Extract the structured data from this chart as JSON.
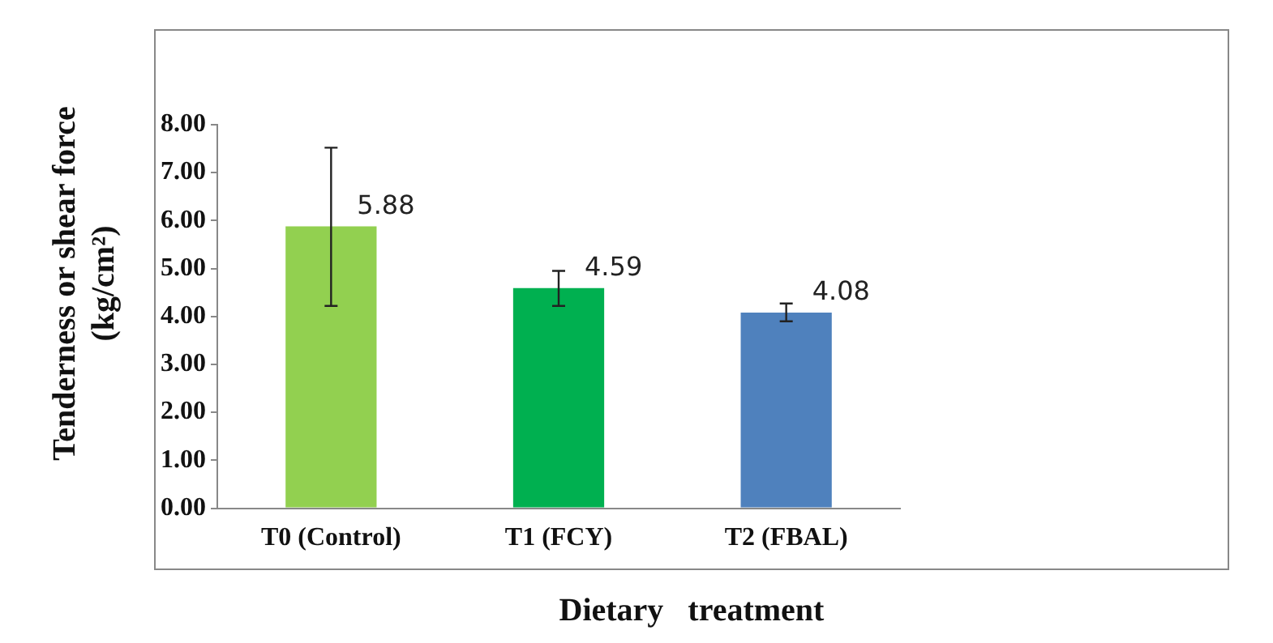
{
  "chart_data": {
    "type": "bar",
    "xlabel": "Dietary   treatment",
    "ylabel": "Tenderness or shear force (kg/cm²)",
    "categories": [
      "T0 (Control)",
      "T1 (FCY)",
      "T2 (FBAL)"
    ],
    "values": [
      5.88,
      4.59,
      4.08
    ],
    "colors": [
      "#92d050",
      "#00b050",
      "#4f81bd"
    ],
    "errors": [
      [
        4.22,
        7.52
      ],
      [
        4.22,
        4.95
      ],
      [
        3.9,
        4.27
      ]
    ],
    "ylim": [
      0,
      8
    ],
    "yticks": [
      {
        "value": 0,
        "label": "0.00"
      },
      {
        "value": 1,
        "label": "1.00"
      },
      {
        "value": 2,
        "label": "2.00"
      },
      {
        "value": 3,
        "label": "3.00"
      },
      {
        "value": 4,
        "label": "4.00"
      },
      {
        "value": 5,
        "label": "5.00"
      },
      {
        "value": 6,
        "label": "6.00"
      },
      {
        "value": 7,
        "label": "7.00"
      },
      {
        "value": 8,
        "label": "8.00"
      }
    ],
    "data_labels": true,
    "grid": false,
    "legend": false
  }
}
